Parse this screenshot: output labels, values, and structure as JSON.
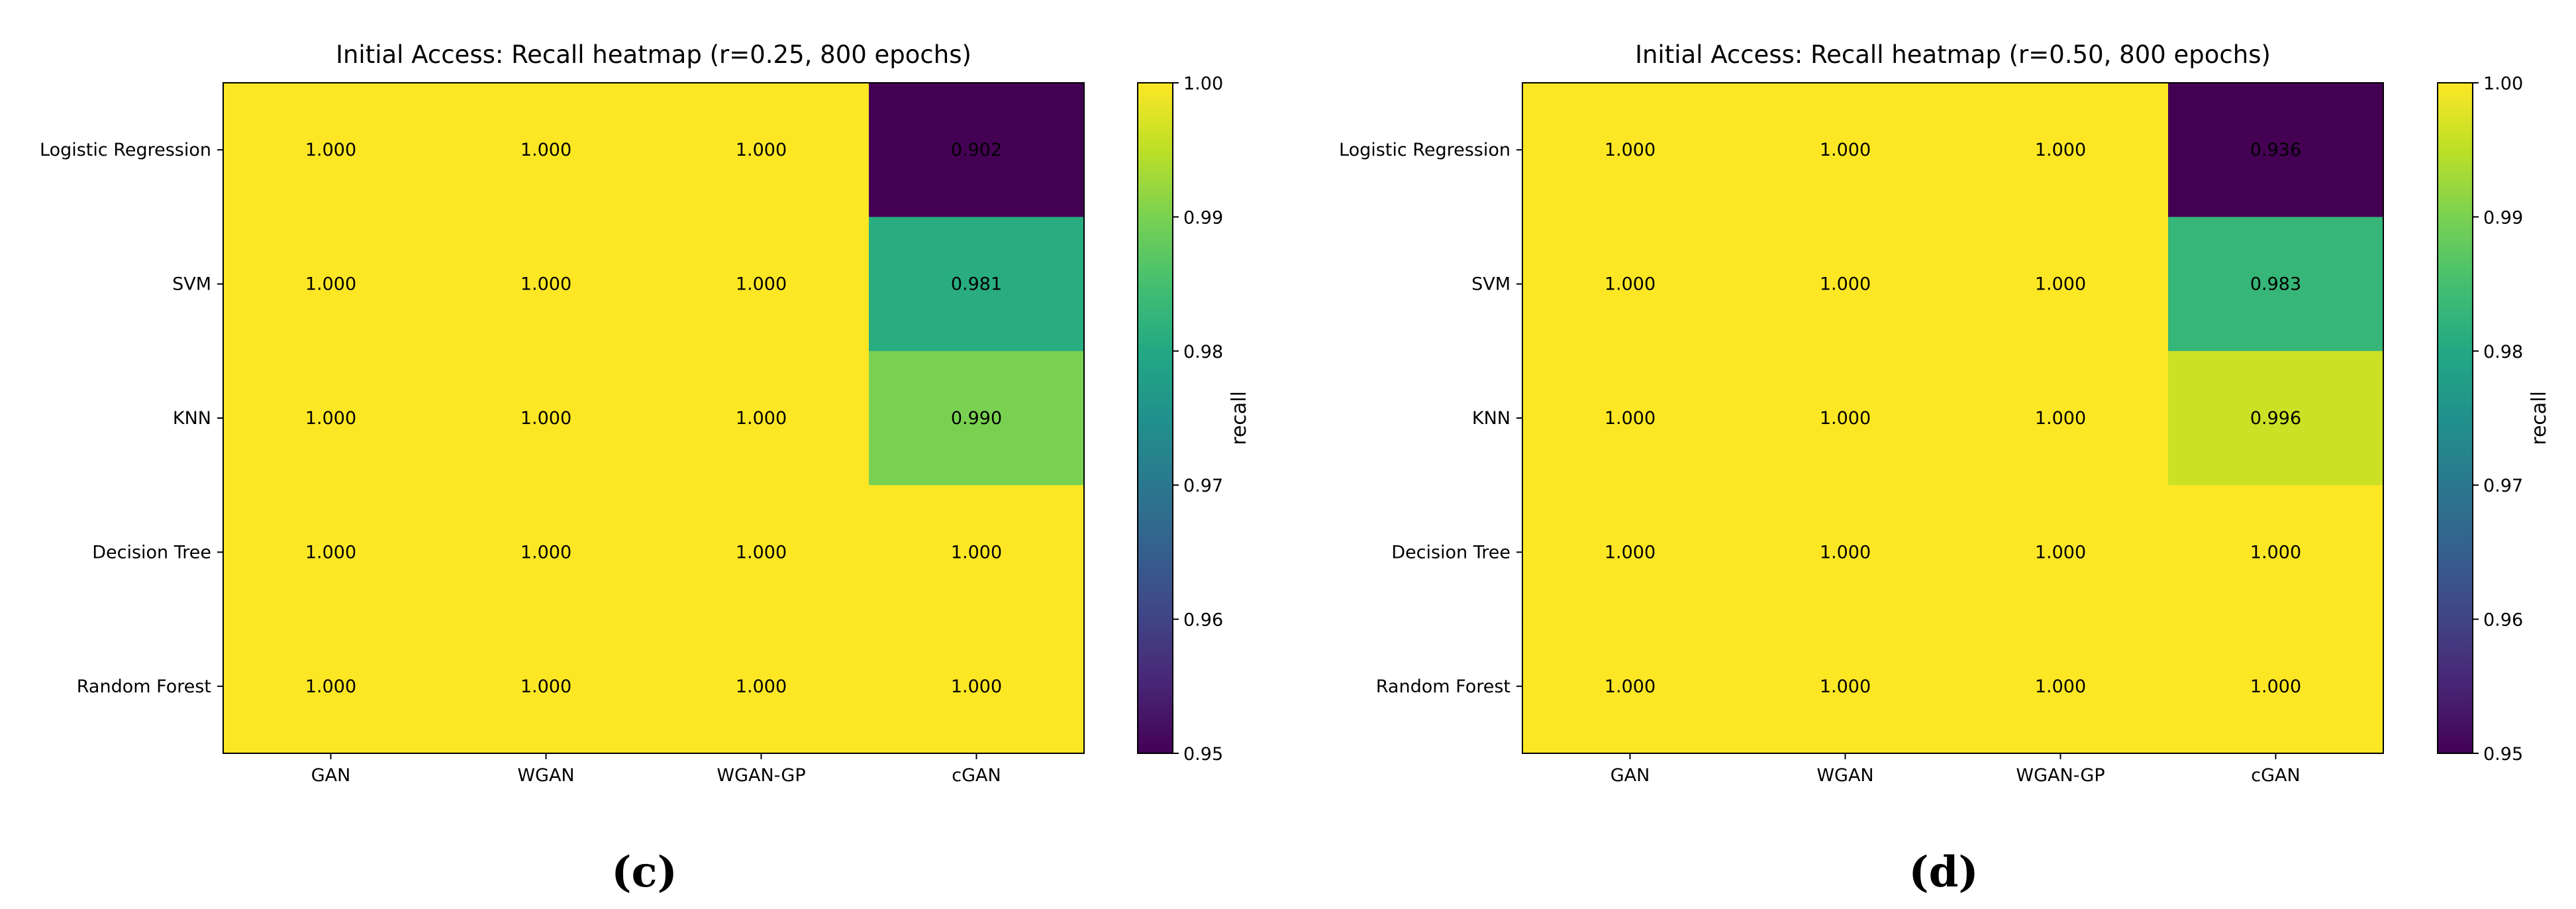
{
  "chart_data": [
    {
      "type": "heatmap",
      "panel_label": "(c)",
      "title": "Initial Access: Recall heatmap (r=0.25, 800 epochs)",
      "x_categories": [
        "GAN",
        "WGAN",
        "WGAN-GP",
        "cGAN"
      ],
      "y_categories": [
        "Logistic Regression",
        "SVM",
        "KNN",
        "Decision Tree",
        "Random Forest"
      ],
      "values": [
        [
          1.0,
          1.0,
          1.0,
          0.902
        ],
        [
          1.0,
          1.0,
          1.0,
          0.981
        ],
        [
          1.0,
          1.0,
          1.0,
          0.99
        ],
        [
          1.0,
          1.0,
          1.0,
          1.0
        ],
        [
          1.0,
          1.0,
          1.0,
          1.0
        ]
      ],
      "value_labels": [
        [
          "1.000",
          "1.000",
          "1.000",
          "0.902"
        ],
        [
          "1.000",
          "1.000",
          "1.000",
          "0.981"
        ],
        [
          "1.000",
          "1.000",
          "1.000",
          "0.990"
        ],
        [
          "1.000",
          "1.000",
          "1.000",
          "1.000"
        ],
        [
          "1.000",
          "1.000",
          "1.000",
          "1.000"
        ]
      ],
      "colorbar": {
        "label": "recall",
        "range": [
          0.95,
          1.0
        ],
        "ticks": [
          "0.95",
          "0.96",
          "0.97",
          "0.98",
          "0.99",
          "1.00"
        ],
        "colormap": "viridis"
      }
    },
    {
      "type": "heatmap",
      "panel_label": "(d)",
      "title": "Initial Access: Recall heatmap (r=0.50, 800 epochs)",
      "x_categories": [
        "GAN",
        "WGAN",
        "WGAN-GP",
        "cGAN"
      ],
      "y_categories": [
        "Logistic Regression",
        "SVM",
        "KNN",
        "Decision Tree",
        "Random Forest"
      ],
      "values": [
        [
          1.0,
          1.0,
          1.0,
          0.936
        ],
        [
          1.0,
          1.0,
          1.0,
          0.983
        ],
        [
          1.0,
          1.0,
          1.0,
          0.996
        ],
        [
          1.0,
          1.0,
          1.0,
          1.0
        ],
        [
          1.0,
          1.0,
          1.0,
          1.0
        ]
      ],
      "value_labels": [
        [
          "1.000",
          "1.000",
          "1.000",
          "0.936"
        ],
        [
          "1.000",
          "1.000",
          "1.000",
          "0.983"
        ],
        [
          "1.000",
          "1.000",
          "1.000",
          "0.996"
        ],
        [
          "1.000",
          "1.000",
          "1.000",
          "1.000"
        ],
        [
          "1.000",
          "1.000",
          "1.000",
          "1.000"
        ]
      ],
      "colorbar": {
        "label": "recall",
        "range": [
          0.95,
          1.0
        ],
        "ticks": [
          "0.95",
          "0.96",
          "0.97",
          "0.98",
          "0.99",
          "1.00"
        ],
        "colormap": "viridis"
      }
    }
  ]
}
